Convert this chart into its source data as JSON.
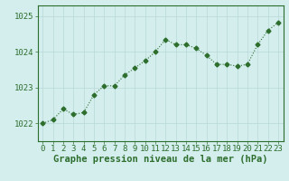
{
  "hours": [
    0,
    1,
    2,
    3,
    4,
    5,
    6,
    7,
    8,
    9,
    10,
    11,
    12,
    13,
    14,
    15,
    16,
    17,
    18,
    19,
    20,
    21,
    22,
    23
  ],
  "pressure": [
    1022.0,
    1022.1,
    1022.4,
    1022.25,
    1022.3,
    1022.8,
    1023.05,
    1023.05,
    1023.35,
    1023.55,
    1023.75,
    1024.0,
    1024.35,
    1024.2,
    1024.2,
    1024.1,
    1023.9,
    1023.65,
    1023.65,
    1023.6,
    1023.65,
    1024.2,
    1024.6,
    1024.82
  ],
  "line_color": "#2d6e2d",
  "marker": "D",
  "marker_size": 2.5,
  "bg_color": "#d4eeee",
  "grid_color": "#b8d8d8",
  "border_color": "#2d6e2d",
  "xlabel": "Graphe pression niveau de la mer (hPa)",
  "xlabel_fontsize": 7.5,
  "ylabel_ticks": [
    1022,
    1023,
    1024,
    1025
  ],
  "ylim": [
    1021.5,
    1025.3
  ],
  "xlim": [
    -0.5,
    23.5
  ],
  "tick_fontsize": 6.5
}
